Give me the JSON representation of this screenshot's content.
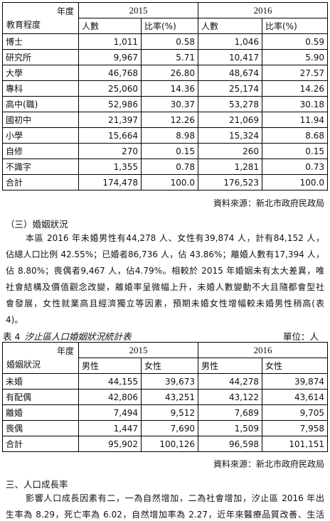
{
  "table1": {
    "corner_top": "年度",
    "corner_bottom": "教育程度",
    "years": [
      "2015",
      "2016"
    ],
    "columns": [
      "人數",
      "比率(%)",
      "人數",
      "比率(%)"
    ],
    "rows": [
      [
        "博士",
        "1,011",
        "0.58",
        "1,046",
        "0.59"
      ],
      [
        "研究所",
        "9,967",
        "5.71",
        "10,417",
        "5.90"
      ],
      [
        "大學",
        "46,768",
        "26.80",
        "48,674",
        "27.57"
      ],
      [
        "專科",
        "25,060",
        "14.36",
        "25,174",
        "14.26"
      ],
      [
        "高中(職)",
        "52,986",
        "30.37",
        "53,278",
        "30.18"
      ],
      [
        "國初中",
        "21,397",
        "12.26",
        "21,069",
        "11.94"
      ],
      [
        "小學",
        "15,664",
        "8.98",
        "15,324",
        "8.68"
      ],
      [
        "自修",
        "270",
        "0.15",
        "260",
        "0.15"
      ],
      [
        "不識字",
        "1,355",
        "0.78",
        "1,281",
        "0.73"
      ],
      [
        "合計",
        "174,478",
        "100.0",
        "176,523",
        "100.0"
      ]
    ],
    "source": "資料來源：新北市政府民政局"
  },
  "marriage_section": {
    "heading": "（三）婚姻狀況",
    "lines": [
      "本區 2016 年未婚男性有44,278 人、女性有39,874 人，計有84,152 人，",
      "佔總人口比例 42.55%；已婚者86,736 人，佔 43.86%；離婚人數有17,394 人，",
      "佔 8.80%；喪偶者9,467 人，佔4.79%。相較於 2015 年婚姻未有太大差異，唯",
      "社會結構及價值觀念改變，離婚率呈微幅上升，未婚人數變動不大且隨都會型社",
      "會發展，女性就業高且經濟獨立等因素，預期未婚女性增幅較未婚男性稍高(表",
      "4)。"
    ]
  },
  "table2": {
    "caption_number": "表 4",
    "caption_title": "汐止區人口婚姻狀況統計表",
    "unit": "單位：人",
    "corner_top": "年度",
    "corner_bottom": "婚姻狀況",
    "years": [
      "2015",
      "2016"
    ],
    "columns": [
      "男性",
      "女性",
      "男性",
      "女性"
    ],
    "rows": [
      [
        "未婚",
        "44,155",
        "39,673",
        "44,278",
        "39,874"
      ],
      [
        "有配偶",
        "42,806",
        "43,251",
        "43,122",
        "43,614"
      ],
      [
        "離婚",
        "7,494",
        "9,512",
        "7,689",
        "9,705"
      ],
      [
        "喪偶",
        "1,447",
        "7,690",
        "1,509",
        "7,958"
      ],
      [
        "合計",
        "95,902",
        "100,126",
        "96,598",
        "101,151"
      ]
    ],
    "source": "資料來源：新北市政府民政局"
  },
  "growth_section": {
    "heading": "三、人口成長率",
    "lines": [
      "影響人口成長因素有二，一為自然增加，二為社會增加，汐止區 2016 年出",
      "生率為 8.29，死亡率為 6.02，自然增加率為 2.27，近年來醫療品質改善、生活"
    ]
  }
}
